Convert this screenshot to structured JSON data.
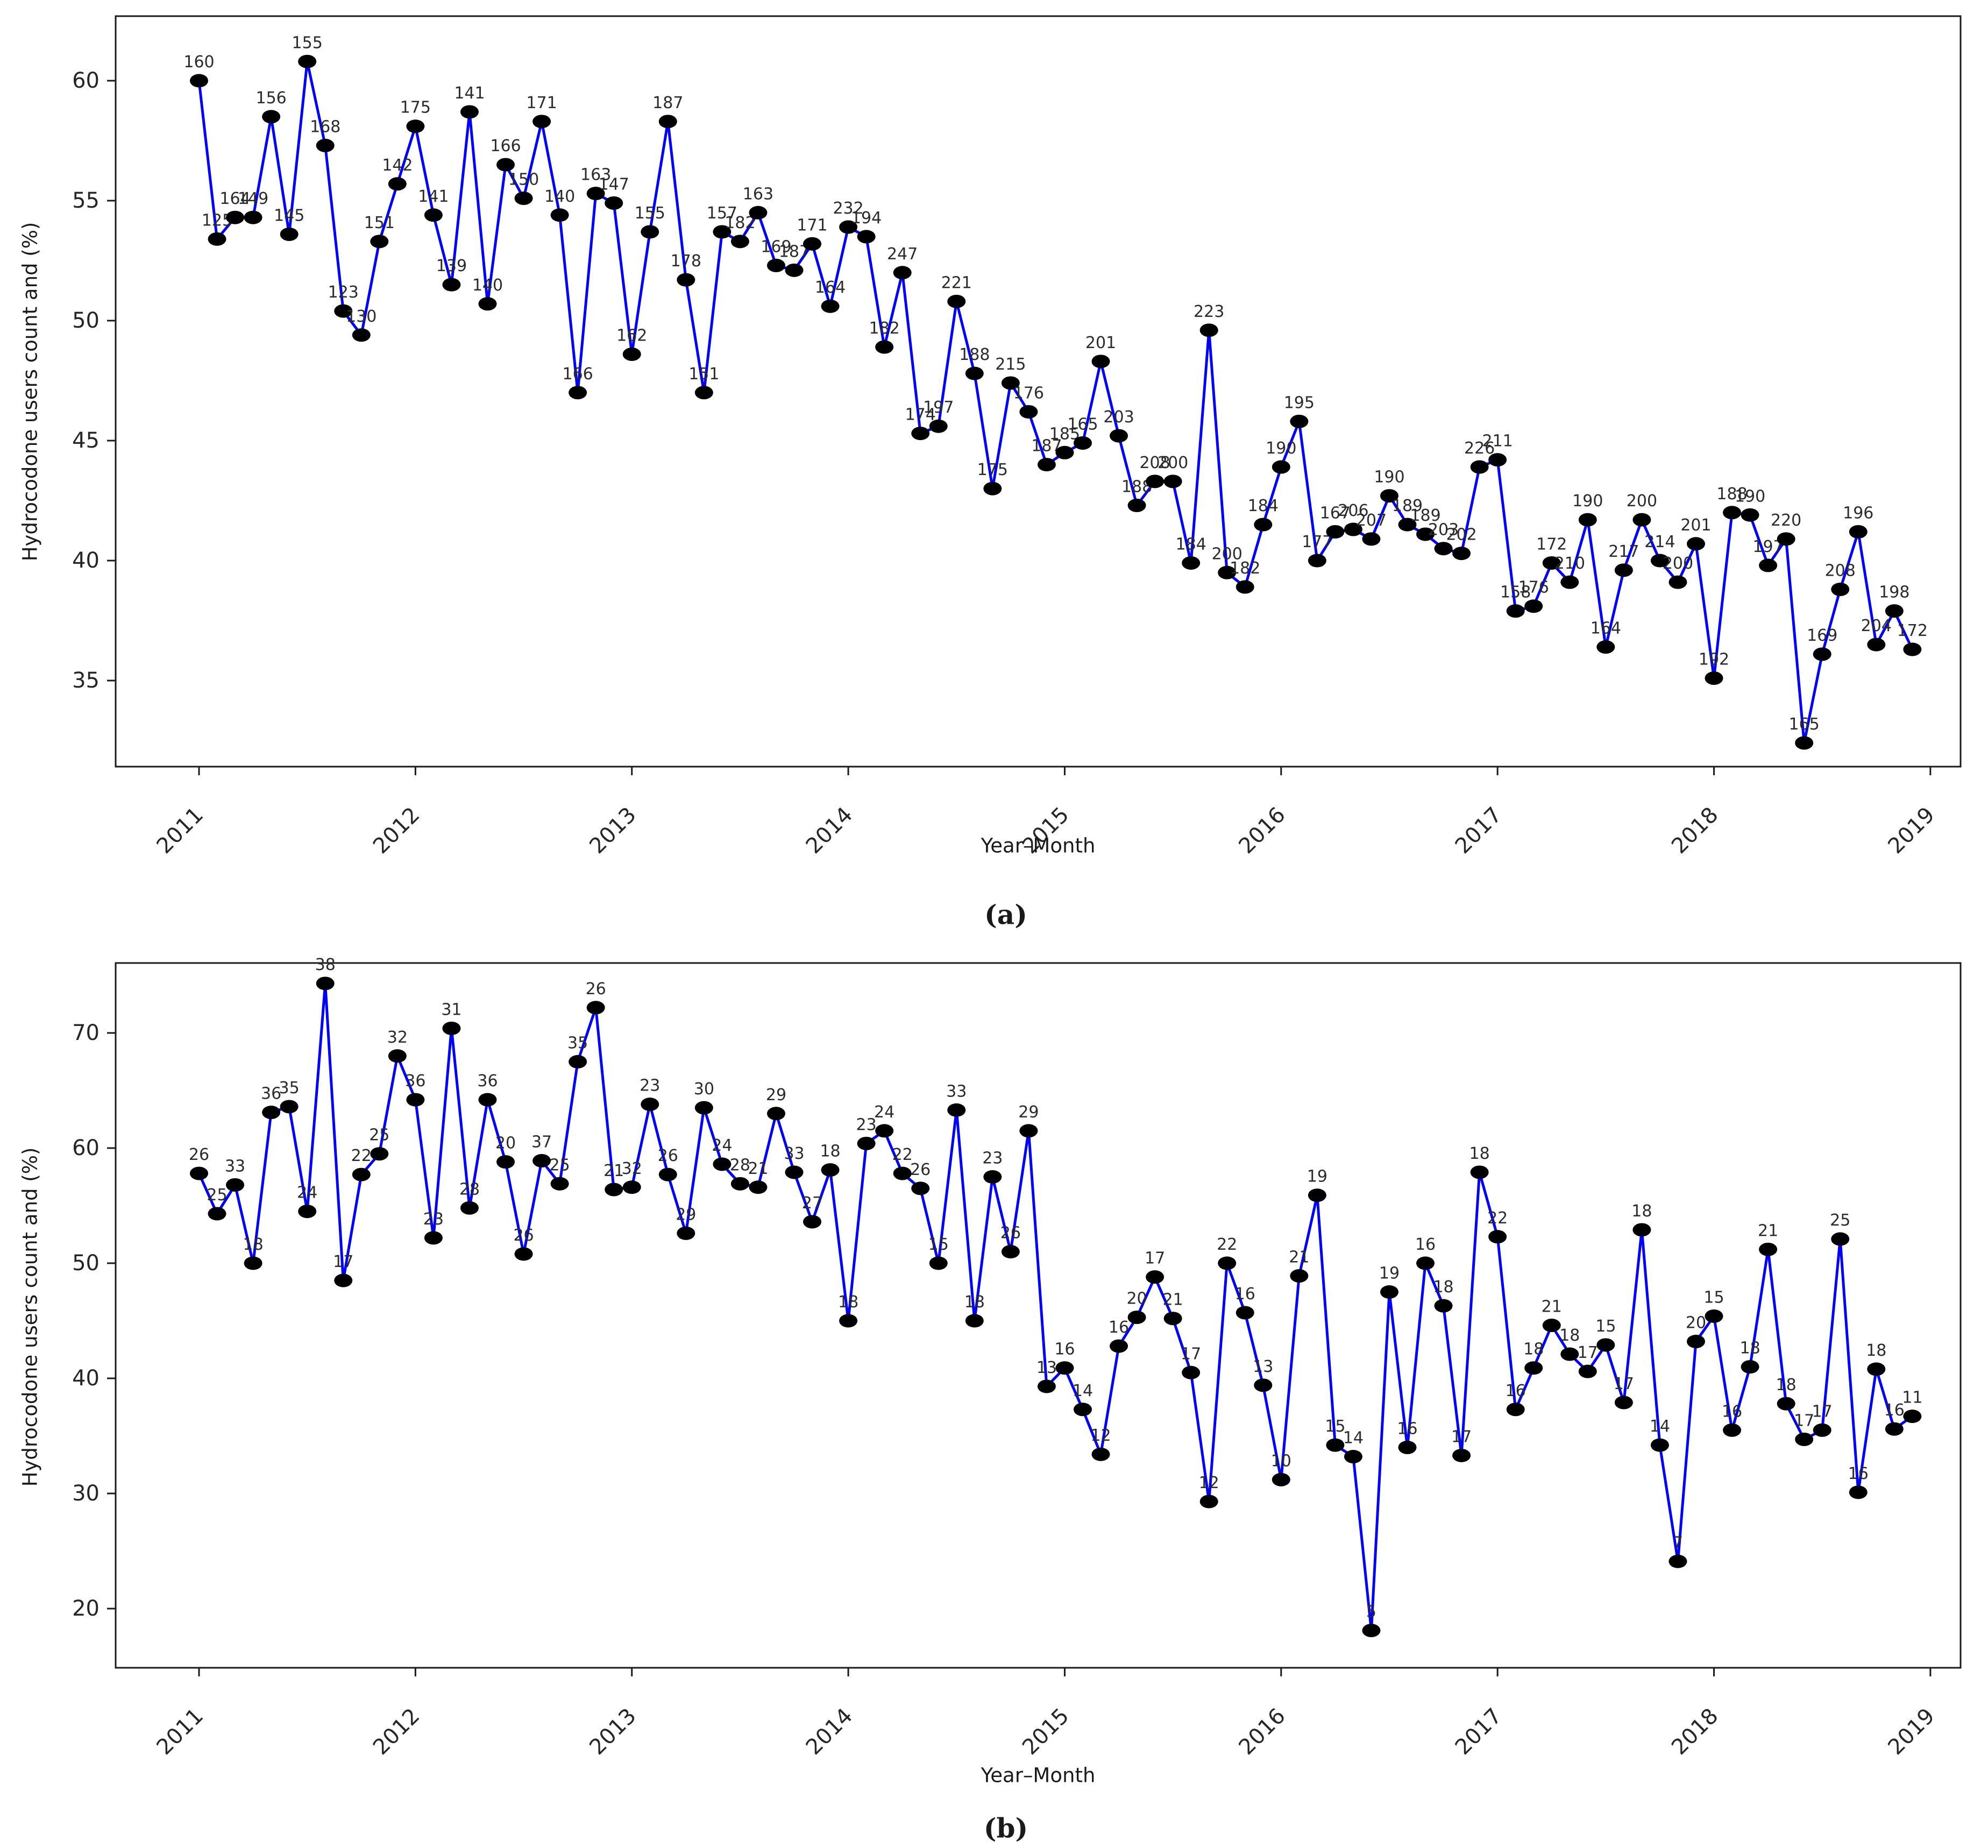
{
  "figure": {
    "captions": [
      "(a)",
      "(b)"
    ]
  },
  "chart_data": [
    {
      "type": "line",
      "title": "",
      "xlabel": "Year–Month",
      "ylabel": "Hydrocodone users count and (%)",
      "x_start": "2011-01",
      "x_end": "2018-12",
      "x_tick_labels": [
        "2011",
        "2012",
        "2013",
        "2014",
        "2015",
        "2016",
        "2017",
        "2018",
        "2019"
      ],
      "y_ticks": [
        35,
        40,
        45,
        50,
        55,
        60
      ],
      "ylim": [
        31.5,
        62.5
      ],
      "grid": false,
      "legend": "none",
      "line_color": "#0000ff",
      "marker_color": "#000000",
      "point_labels": [
        160,
        125,
        164,
        149,
        156,
        145,
        155,
        168,
        123,
        130,
        151,
        142,
        175,
        141,
        139,
        141,
        140,
        166,
        150,
        171,
        140,
        166,
        163,
        147,
        162,
        155,
        187,
        178,
        151,
        157,
        182,
        163,
        169,
        187,
        171,
        164,
        232,
        194,
        182,
        247,
        174,
        197,
        221,
        188,
        175,
        215,
        176,
        187,
        185,
        165,
        201,
        203,
        188,
        208,
        200,
        184,
        223,
        200,
        182,
        184,
        190,
        195,
        177,
        167,
        206,
        207,
        190,
        189,
        189,
        203,
        202,
        226,
        211,
        158,
        176,
        172,
        210,
        190,
        164,
        217,
        200,
        214,
        200,
        201,
        192,
        188,
        190,
        197,
        220,
        165,
        169,
        208,
        196,
        204,
        198,
        172
      ],
      "values": [
        60.0,
        53.4,
        54.3,
        54.3,
        58.5,
        53.6,
        60.8,
        57.3,
        50.4,
        49.4,
        53.3,
        55.7,
        58.1,
        54.4,
        51.5,
        58.7,
        50.7,
        56.5,
        55.1,
        58.3,
        54.4,
        47.0,
        55.3,
        54.9,
        48.6,
        53.7,
        58.3,
        51.7,
        47.0,
        53.7,
        53.3,
        54.5,
        52.3,
        52.1,
        53.2,
        50.6,
        53.9,
        53.5,
        48.9,
        52.0,
        45.3,
        45.6,
        50.8,
        47.8,
        43.0,
        47.4,
        46.2,
        44.0,
        44.5,
        44.9,
        48.3,
        45.2,
        42.3,
        43.3,
        43.3,
        39.9,
        49.6,
        39.5,
        38.9,
        41.5,
        43.9,
        45.8,
        40.0,
        41.2,
        41.3,
        40.9,
        42.7,
        41.5,
        41.1,
        40.5,
        40.3,
        43.9,
        44.2,
        37.9,
        38.1,
        39.9,
        39.1,
        41.7,
        36.4,
        39.6,
        41.7,
        40.0,
        39.1,
        40.7,
        35.1,
        42.0,
        41.9,
        39.8,
        40.9,
        32.4,
        36.1,
        38.8,
        41.2,
        36.5,
        37.9,
        36.3
      ]
    },
    {
      "type": "line",
      "title": "",
      "xlabel": "Year–Month",
      "ylabel": "Hydrocodone users count and (%)",
      "x_start": "2011-01",
      "x_end": "2018-12",
      "x_tick_labels": [
        "2011",
        "2012",
        "2013",
        "2014",
        "2015",
        "2016",
        "2017",
        "2018",
        "2019"
      ],
      "y_ticks": [
        20,
        30,
        40,
        50,
        60,
        70
      ],
      "ylim": [
        15.0,
        76.0
      ],
      "grid": false,
      "legend": "none",
      "line_color": "#0000ff",
      "marker_color": "#000000",
      "point_labels": [
        26,
        25,
        33,
        18,
        36,
        35,
        24,
        38,
        17,
        22,
        25,
        32,
        36,
        23,
        31,
        28,
        36,
        20,
        26,
        37,
        25,
        35,
        26,
        21,
        32,
        23,
        26,
        29,
        30,
        24,
        28,
        21,
        29,
        33,
        27,
        18,
        18,
        23,
        24,
        22,
        26,
        15,
        33,
        18,
        23,
        26,
        29,
        13,
        16,
        14,
        12,
        16,
        20,
        17,
        21,
        17,
        12,
        22,
        16,
        13,
        10,
        21,
        19,
        15,
        14,
        5,
        19,
        16,
        16,
        18,
        17,
        18,
        22,
        16,
        18,
        21,
        18,
        17,
        15,
        17,
        18,
        14,
        7,
        20,
        15,
        16,
        18,
        21,
        18,
        17,
        17,
        25,
        16,
        18,
        16,
        11
      ],
      "values": [
        57.8,
        54.3,
        56.8,
        50.0,
        63.1,
        63.6,
        54.5,
        74.3,
        48.5,
        57.7,
        59.5,
        68.0,
        64.2,
        52.2,
        70.4,
        54.8,
        64.2,
        58.8,
        50.8,
        58.9,
        56.9,
        67.5,
        72.2,
        56.4,
        56.6,
        63.8,
        57.7,
        52.6,
        63.5,
        58.6,
        56.9,
        56.6,
        63.0,
        57.9,
        53.6,
        58.1,
        45.0,
        60.4,
        61.5,
        57.8,
        56.5,
        50.0,
        63.3,
        45.0,
        57.5,
        51.0,
        61.5,
        39.3,
        40.9,
        37.3,
        33.4,
        42.8,
        45.3,
        48.8,
        45.2,
        40.5,
        29.3,
        50.0,
        45.7,
        39.4,
        31.2,
        48.9,
        55.9,
        34.2,
        33.2,
        18.1,
        47.5,
        34.0,
        50.0,
        46.3,
        33.3,
        57.9,
        52.3,
        37.3,
        40.9,
        44.6,
        42.1,
        40.6,
        42.9,
        37.9,
        52.9,
        34.2,
        24.1,
        43.2,
        45.4,
        35.5,
        41.0,
        51.2,
        37.8,
        34.7,
        35.5,
        52.1,
        30.1,
        40.8,
        35.6,
        36.7
      ]
    }
  ]
}
